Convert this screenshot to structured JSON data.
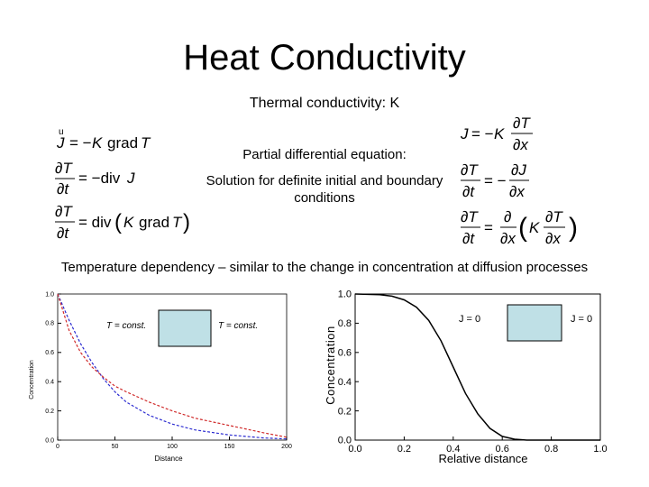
{
  "slide": {
    "title": "Heat Conductivity",
    "subtitle": "Thermal conductivity: K",
    "pde_label": "Partial differential equation:",
    "solution_label": "Solution for definite initial and boundary conditions",
    "temp_dependency": "Temperature dependency – similar to the change in concentration at diffusion processes"
  },
  "equations": {
    "left": [
      "J = −K grad T",
      "∂T/∂t = −div J",
      "∂T/∂t = div(K grad T)"
    ],
    "right": [
      "J = −K ∂T/∂x",
      "∂T/∂t = −∂J/∂x",
      "∂T/∂t = ∂/∂x (K ∂T/∂x)"
    ]
  },
  "chart_data": [
    {
      "type": "line",
      "xlabel": "Distance",
      "ylabel": "Concentration",
      "xlim": [
        0,
        200
      ],
      "ylim": [
        0,
        1.0
      ],
      "xticks": [
        "0",
        "50",
        "100",
        "150",
        "200"
      ],
      "yticks": [
        "0.0",
        "0.2",
        "0.4",
        "0.6",
        "0.8",
        "1.0"
      ],
      "annotations": [
        "T = const.",
        "T = const."
      ],
      "series": [
        {
          "color": "#2a2ad0",
          "x": [
            0,
            10,
            20,
            30,
            40,
            50,
            60,
            80,
            100,
            120,
            150,
            180,
            200
          ],
          "values": [
            1.0,
            0.82,
            0.66,
            0.53,
            0.42,
            0.33,
            0.26,
            0.17,
            0.11,
            0.07,
            0.035,
            0.015,
            0.008
          ]
        },
        {
          "color": "#d02a2a",
          "x": [
            0,
            10,
            20,
            30,
            40,
            50,
            60,
            80,
            100,
            120,
            150,
            180,
            200
          ],
          "values": [
            1.0,
            0.75,
            0.6,
            0.5,
            0.43,
            0.37,
            0.33,
            0.26,
            0.2,
            0.15,
            0.1,
            0.05,
            0.02
          ]
        }
      ]
    },
    {
      "type": "line",
      "xlabel": "Relative distance",
      "ylabel": "Concentration",
      "xlim": [
        0,
        1.0
      ],
      "ylim": [
        0,
        1.0
      ],
      "xticks": [
        "0.0",
        "0.2",
        "0.4",
        "0.6",
        "0.8",
        "1.0"
      ],
      "yticks": [
        "0.0",
        "0.2",
        "0.4",
        "0.6",
        "0.8",
        "1.0"
      ],
      "annotations": [
        "J = 0",
        "J = 0"
      ],
      "series": [
        {
          "color": "#000000",
          "x": [
            0,
            0.1,
            0.15,
            0.2,
            0.25,
            0.3,
            0.35,
            0.4,
            0.45,
            0.5,
            0.55,
            0.6,
            0.65,
            0.7,
            1.0
          ],
          "values": [
            1.0,
            0.995,
            0.985,
            0.96,
            0.91,
            0.82,
            0.68,
            0.5,
            0.32,
            0.18,
            0.08,
            0.025,
            0.006,
            0.0,
            0.0
          ]
        }
      ]
    }
  ],
  "colors": {
    "box_fill": "#bfe0e6",
    "blue_curve": "#2a2ad0",
    "red_curve": "#d02a2a"
  }
}
